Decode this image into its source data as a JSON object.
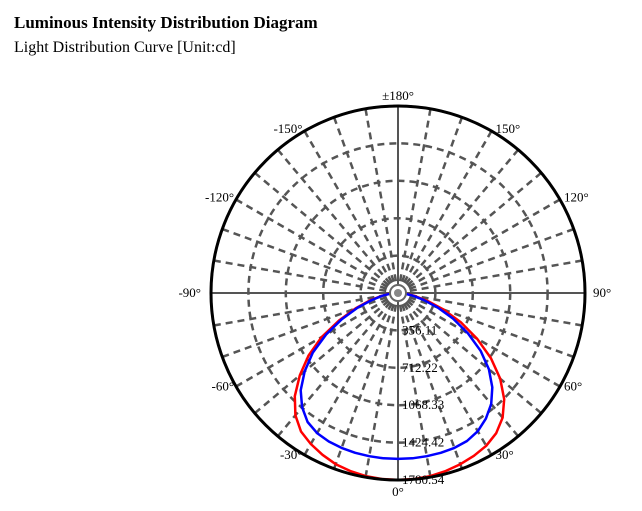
{
  "page": {
    "title": "Luminous Intensity Distribution Diagram",
    "subtitle": "Light Distribution Curve [Unit:cd]"
  },
  "chart_data": {
    "type": "polar",
    "angle_labels": [
      "±180°",
      "150°",
      "120°",
      "90°",
      "60°",
      "30°",
      "0°",
      "-30°",
      "-60°",
      "-90°",
      "-120°",
      "-150°"
    ],
    "angle_label_angles": [
      180,
      150,
      120,
      90,
      60,
      30,
      0,
      -30,
      -60,
      -90,
      -120,
      -150
    ],
    "radial_ticks": [
      356.11,
      712.22,
      1068.33,
      1424.42,
      1780.54
    ],
    "radial_tick_labels": [
      "356.11",
      "712.22",
      "1068.33",
      "1424.42",
      "1780.54"
    ],
    "rmax": 1780.54,
    "angular_grid_step": 10,
    "grid": true,
    "grid_color": "#555555",
    "series": [
      {
        "color": "#ff0000",
        "angles": [
          -90,
          -85,
          -80,
          -75,
          -70,
          -65,
          -60,
          -55,
          -50,
          -45,
          -40,
          -35,
          -30,
          -25,
          -20,
          -15,
          -10,
          -5,
          0,
          5,
          10,
          15,
          20,
          25,
          30,
          35,
          40,
          45,
          50,
          55,
          60,
          65,
          70,
          75,
          80,
          85,
          90
        ],
        "values": [
          30,
          80,
          160,
          280,
          430,
          620,
          840,
          1040,
          1220,
          1390,
          1520,
          1610,
          1660,
          1700,
          1735,
          1755,
          1770,
          1778,
          1780,
          1778,
          1770,
          1755,
          1735,
          1710,
          1680,
          1630,
          1550,
          1430,
          1270,
          1080,
          870,
          660,
          460,
          290,
          160,
          70,
          25
        ]
      },
      {
        "color": "#0000ff",
        "angles": [
          -90,
          -85,
          -80,
          -75,
          -70,
          -65,
          -60,
          -55,
          -50,
          -45,
          -40,
          -35,
          -30,
          -25,
          -20,
          -15,
          -10,
          -5,
          0,
          5,
          10,
          15,
          20,
          25,
          30,
          35,
          40,
          45,
          50,
          55,
          60,
          65,
          70,
          75,
          80,
          85,
          90
        ],
        "values": [
          25,
          70,
          150,
          260,
          410,
          590,
          790,
          990,
          1160,
          1310,
          1420,
          1500,
          1540,
          1560,
          1570,
          1575,
          1578,
          1580,
          1580,
          1580,
          1578,
          1575,
          1570,
          1555,
          1520,
          1460,
          1380,
          1270,
          1130,
          960,
          770,
          580,
          400,
          250,
          140,
          60,
          20
        ]
      }
    ]
  }
}
